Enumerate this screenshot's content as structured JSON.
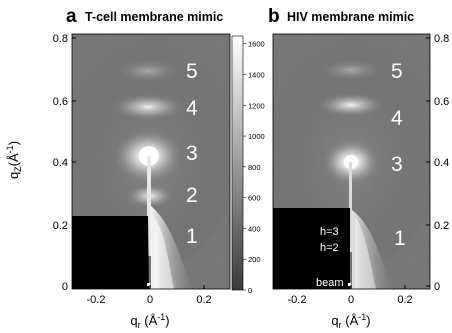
{
  "panels": [
    {
      "letter": "a",
      "title": "T-cell membrane mimic"
    },
    {
      "letter": "b",
      "title": "HIV membrane mimic"
    }
  ],
  "axes": {
    "qz_label": "q",
    "qz_sub": "Z",
    "qz_unit": "(Å",
    "qz_unit_sup": "-1",
    "qz_unit_close": ")",
    "qr_label": "q",
    "qr_sub": "r",
    "qr_unit": " (Å",
    "qr_unit_sup": "-1",
    "qr_unit_close": ")",
    "qz_ticks": [
      "0",
      "0.2",
      "0.4",
      "0.6",
      "0.8"
    ],
    "qr_ticks": [
      "-0.2",
      "0",
      "0.2"
    ]
  },
  "colorbar": {
    "ticks": [
      "0",
      "200",
      "400",
      "600",
      "800",
      "1000",
      "1200",
      "1400",
      "1600"
    ],
    "min": 0,
    "max": 1650,
    "colors": [
      "#3a3a3a",
      "#ffffff"
    ]
  },
  "orders": {
    "a": [
      "1",
      "2",
      "3",
      "4",
      "5"
    ],
    "b": [
      "1",
      "3",
      "4",
      "5"
    ]
  },
  "annotations": {
    "h3": "h=3",
    "h2": "h=2",
    "beam": "beam"
  },
  "chart_data": [
    {
      "type": "heatmap",
      "title": "T-cell membrane mimic",
      "xlabel": "qr (Å-1)",
      "ylabel": "qZ (Å-1)",
      "xlim": [
        -0.3,
        0.3
      ],
      "ylim": [
        -0.02,
        0.82
      ],
      "peaks": [
        {
          "order": "1",
          "qz": 0.2
        },
        {
          "order": "2",
          "qz": 0.32
        },
        {
          "order": "3",
          "qz": 0.44
        },
        {
          "order": "4",
          "qz": 0.58
        },
        {
          "order": "5",
          "qz": 0.71
        }
      ]
    },
    {
      "type": "heatmap",
      "title": "HIV membrane mimic",
      "xlabel": "qr (Å-1)",
      "ylabel": "qZ (Å-1)",
      "xlim": [
        -0.3,
        0.3
      ],
      "ylim": [
        -0.02,
        0.82
      ],
      "peaks": [
        {
          "order": "1",
          "qz": 0.2
        },
        {
          "order": "3",
          "qz": 0.42
        },
        {
          "order": "4",
          "qz": 0.56
        },
        {
          "order": "5",
          "qz": 0.71
        }
      ]
    }
  ]
}
